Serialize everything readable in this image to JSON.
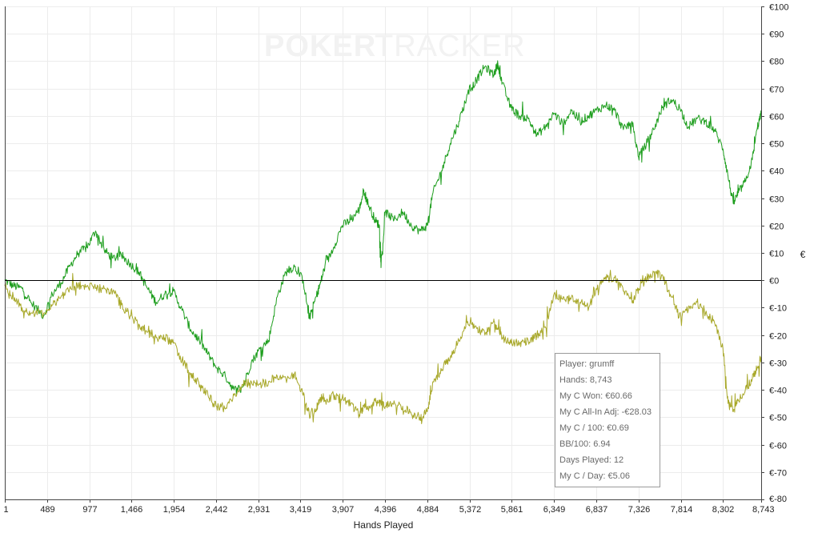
{
  "watermark": {
    "left": "POKER",
    "right": "TRACKER"
  },
  "chart_data": {
    "type": "line",
    "xlabel": "Hands Played",
    "ylabel": "€",
    "xlim": [
      1,
      8743
    ],
    "ylim": [
      -80,
      100
    ],
    "x_ticks": [
      1,
      489,
      977,
      1466,
      1954,
      2442,
      2931,
      3419,
      3907,
      4396,
      4884,
      5372,
      5861,
      6349,
      6837,
      7326,
      7814,
      8302,
      8743
    ],
    "x_tick_labels": [
      "1",
      "489",
      "977",
      "1,466",
      "1,954",
      "2,442",
      "2,931",
      "3,419",
      "3,907",
      "4,396",
      "4,884",
      "5,372",
      "5,861",
      "6,349",
      "6,837",
      "7,326",
      "7,814",
      "8,302",
      "8,743"
    ],
    "y_ticks": [
      100,
      90,
      80,
      70,
      60,
      50,
      40,
      30,
      20,
      10,
      0,
      -10,
      -20,
      -30,
      -40,
      -50,
      -60,
      -70,
      -80
    ],
    "y_tick_labels": [
      "€100",
      "€90",
      "€80",
      "€70",
      "€60",
      "€50",
      "€40",
      "€30",
      "€20",
      "€10",
      "€0",
      "€-10",
      "€-20",
      "€-30",
      "€-40",
      "€-50",
      "€-60",
      "€-70",
      "€-80"
    ],
    "grid": true,
    "zero_line": true,
    "series": [
      {
        "color": "#1e9e1e",
        "points": [
          [
            1,
            0
          ],
          [
            100,
            -2
          ],
          [
            200,
            -3
          ],
          [
            300,
            -8
          ],
          [
            450,
            -13
          ],
          [
            550,
            -5
          ],
          [
            650,
            -1
          ],
          [
            750,
            5
          ],
          [
            850,
            10
          ],
          [
            950,
            12
          ],
          [
            1050,
            18
          ],
          [
            1150,
            11
          ],
          [
            1250,
            8
          ],
          [
            1350,
            9
          ],
          [
            1450,
            6
          ],
          [
            1550,
            3
          ],
          [
            1650,
            -3
          ],
          [
            1750,
            -8
          ],
          [
            1850,
            -5
          ],
          [
            1950,
            -4
          ],
          [
            2050,
            -11
          ],
          [
            2150,
            -18
          ],
          [
            2250,
            -22
          ],
          [
            2350,
            -27
          ],
          [
            2450,
            -32
          ],
          [
            2550,
            -35
          ],
          [
            2650,
            -40
          ],
          [
            2750,
            -39
          ],
          [
            2850,
            -30
          ],
          [
            2950,
            -25
          ],
          [
            3050,
            -22
          ],
          [
            3150,
            -6
          ],
          [
            3250,
            3
          ],
          [
            3350,
            5
          ],
          [
            3450,
            0
          ],
          [
            3520,
            -14
          ],
          [
            3600,
            -6
          ],
          [
            3650,
            -1
          ],
          [
            3700,
            5
          ],
          [
            3800,
            12
          ],
          [
            3900,
            20
          ],
          [
            4000,
            22
          ],
          [
            4100,
            26
          ],
          [
            4150,
            33
          ],
          [
            4200,
            28
          ],
          [
            4280,
            22
          ],
          [
            4330,
            20
          ],
          [
            4350,
            5
          ],
          [
            4400,
            25
          ],
          [
            4500,
            22
          ],
          [
            4600,
            25
          ],
          [
            4700,
            20
          ],
          [
            4800,
            18
          ],
          [
            4884,
            20
          ],
          [
            4950,
            32
          ],
          [
            5050,
            40
          ],
          [
            5150,
            50
          ],
          [
            5250,
            58
          ],
          [
            5350,
            68
          ],
          [
            5450,
            73
          ],
          [
            5550,
            78
          ],
          [
            5650,
            75
          ],
          [
            5700,
            79
          ],
          [
            5750,
            72
          ],
          [
            5850,
            63
          ],
          [
            5950,
            60
          ],
          [
            6050,
            59
          ],
          [
            6150,
            53
          ],
          [
            6250,
            56
          ],
          [
            6349,
            61
          ],
          [
            6450,
            57
          ],
          [
            6550,
            62
          ],
          [
            6650,
            58
          ],
          [
            6750,
            60
          ],
          [
            6837,
            62
          ],
          [
            6950,
            64
          ],
          [
            7050,
            62
          ],
          [
            7150,
            55
          ],
          [
            7250,
            58
          ],
          [
            7326,
            45
          ],
          [
            7400,
            49
          ],
          [
            7500,
            55
          ],
          [
            7600,
            63
          ],
          [
            7700,
            66
          ],
          [
            7800,
            63
          ],
          [
            7900,
            56
          ],
          [
            8000,
            59
          ],
          [
            8100,
            58
          ],
          [
            8200,
            55
          ],
          [
            8302,
            48
          ],
          [
            8360,
            38
          ],
          [
            8420,
            28
          ],
          [
            8480,
            32
          ],
          [
            8560,
            36
          ],
          [
            8640,
            44
          ],
          [
            8700,
            56
          ],
          [
            8743,
            60.66
          ]
        ]
      },
      {
        "color": "#a8a82a",
        "points": [
          [
            1,
            -2
          ],
          [
            100,
            -6
          ],
          [
            200,
            -10
          ],
          [
            300,
            -12
          ],
          [
            450,
            -12
          ],
          [
            550,
            -9
          ],
          [
            650,
            -6
          ],
          [
            750,
            -3
          ],
          [
            850,
            -2
          ],
          [
            950,
            -2
          ],
          [
            1050,
            -3
          ],
          [
            1150,
            -3
          ],
          [
            1250,
            -4
          ],
          [
            1350,
            -9
          ],
          [
            1450,
            -13
          ],
          [
            1550,
            -16
          ],
          [
            1650,
            -19
          ],
          [
            1750,
            -21
          ],
          [
            1850,
            -21
          ],
          [
            1950,
            -23
          ],
          [
            2050,
            -29
          ],
          [
            2150,
            -34
          ],
          [
            2250,
            -39
          ],
          [
            2350,
            -42
          ],
          [
            2450,
            -46
          ],
          [
            2550,
            -47
          ],
          [
            2650,
            -42
          ],
          [
            2750,
            -38
          ],
          [
            2850,
            -37
          ],
          [
            2950,
            -38
          ],
          [
            3050,
            -37
          ],
          [
            3150,
            -35
          ],
          [
            3250,
            -36
          ],
          [
            3350,
            -34
          ],
          [
            3450,
            -42
          ],
          [
            3520,
            -49
          ],
          [
            3600,
            -47
          ],
          [
            3650,
            -43
          ],
          [
            3700,
            -44
          ],
          [
            3800,
            -42
          ],
          [
            3900,
            -43
          ],
          [
            4000,
            -45
          ],
          [
            4100,
            -49
          ],
          [
            4150,
            -46
          ],
          [
            4200,
            -47
          ],
          [
            4280,
            -44
          ],
          [
            4350,
            -45
          ],
          [
            4400,
            -46
          ],
          [
            4500,
            -44
          ],
          [
            4600,
            -46
          ],
          [
            4700,
            -49
          ],
          [
            4800,
            -50
          ],
          [
            4884,
            -48
          ],
          [
            4950,
            -37
          ],
          [
            5050,
            -33
          ],
          [
            5150,
            -28
          ],
          [
            5250,
            -22
          ],
          [
            5350,
            -15
          ],
          [
            5450,
            -17
          ],
          [
            5550,
            -20
          ],
          [
            5650,
            -15
          ],
          [
            5700,
            -18
          ],
          [
            5750,
            -21
          ],
          [
            5850,
            -23
          ],
          [
            5950,
            -23
          ],
          [
            6050,
            -22
          ],
          [
            6150,
            -20
          ],
          [
            6250,
            -17
          ],
          [
            6349,
            -5
          ],
          [
            6450,
            -7
          ],
          [
            6550,
            -6
          ],
          [
            6650,
            -8
          ],
          [
            6750,
            -10
          ],
          [
            6837,
            -3
          ],
          [
            6950,
            0
          ],
          [
            7050,
            1
          ],
          [
            7150,
            -4
          ],
          [
            7250,
            -8
          ],
          [
            7326,
            -3
          ],
          [
            7400,
            0
          ],
          [
            7500,
            3
          ],
          [
            7600,
            2
          ],
          [
            7700,
            -6
          ],
          [
            7800,
            -12
          ],
          [
            7900,
            -11
          ],
          [
            8000,
            -8
          ],
          [
            8100,
            -12
          ],
          [
            8200,
            -15
          ],
          [
            8302,
            -25
          ],
          [
            8360,
            -45
          ],
          [
            8420,
            -48
          ],
          [
            8480,
            -44
          ],
          [
            8560,
            -40
          ],
          [
            8640,
            -36
          ],
          [
            8700,
            -32
          ],
          [
            8743,
            -28.03
          ]
        ]
      }
    ]
  },
  "stats": {
    "player": "Player: grumff",
    "hands": "Hands: 8,743",
    "won": "My C Won: €60.66",
    "allin_adj": "My C All-In Adj: -€28.03",
    "per_100": "My C / 100: €0.69",
    "bb_100": "BB/100: 6.94",
    "days_played": "Days Played: 12",
    "per_day": "My C / Day: €5.06"
  }
}
